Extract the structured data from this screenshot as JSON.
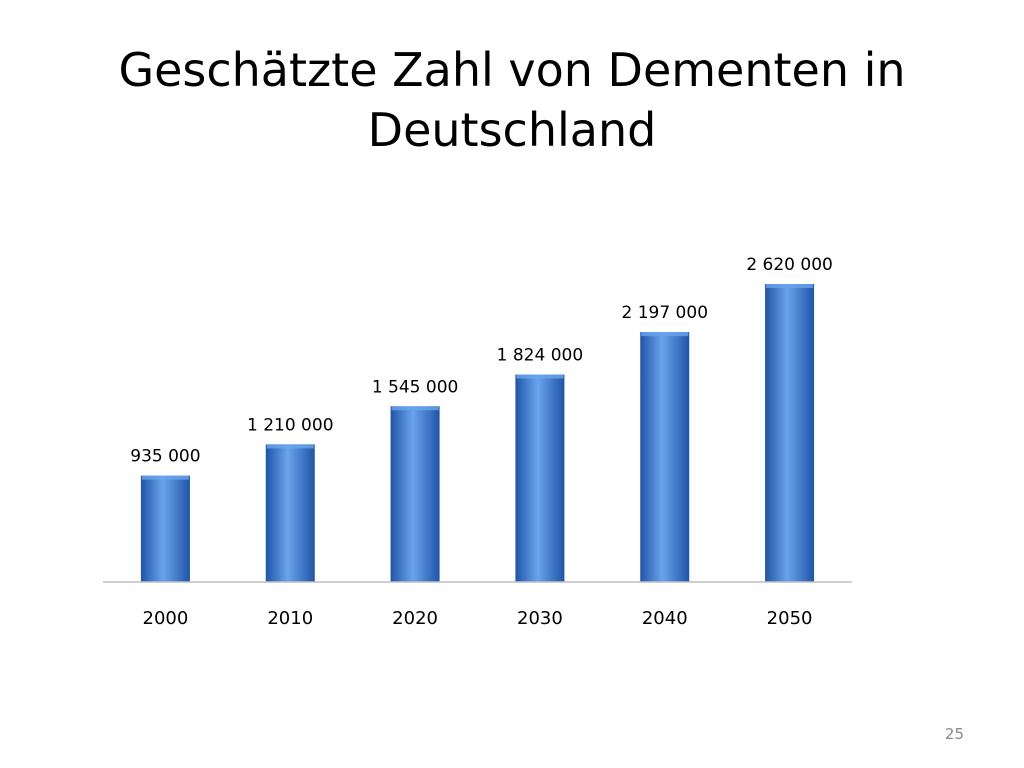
{
  "slide": {
    "title": "Geschätzte Zahl von Dementen in Deutschland",
    "page_number": "25"
  },
  "chart_data": {
    "type": "bar",
    "title": "",
    "xlabel": "",
    "ylabel": "",
    "categories": [
      "2000",
      "2010",
      "2020",
      "2030",
      "2040",
      "2050"
    ],
    "series": [
      {
        "values": [
          935000,
          1210000,
          1545000,
          1824000,
          2197000,
          2620000
        ],
        "labels": [
          "935 000",
          "1 210 000",
          "1 545 000",
          "1 824 000",
          "2 197 000",
          "2 620 000"
        ]
      }
    ],
    "ylim": [
      0,
      3000000
    ],
    "grid": false,
    "legend": "none",
    "colors": {
      "bar": "#3f7fd6",
      "bar_dark": "#1f54a8",
      "bar_light": "#6aa4ec",
      "axis": "#bfbfbf"
    }
  }
}
